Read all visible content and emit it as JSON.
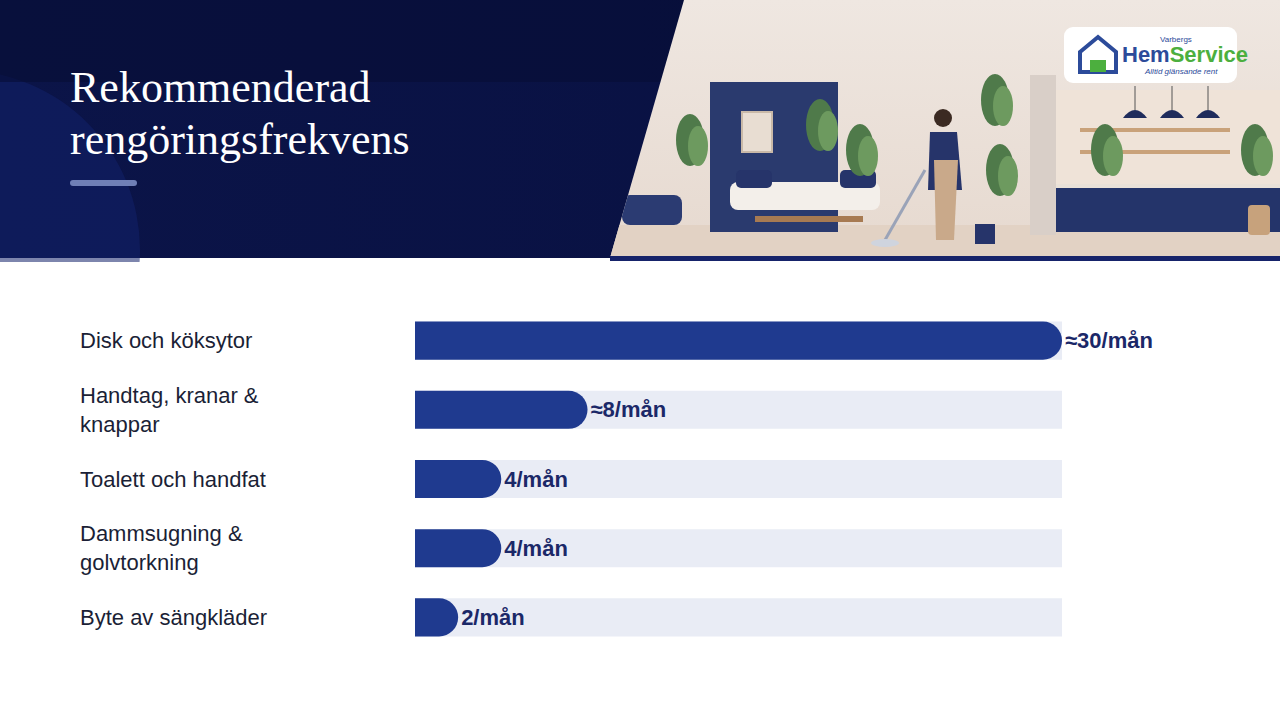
{
  "header": {
    "title": "Rekommenderad rengöringsfrekvens",
    "logo": {
      "top_text": "Varbergs",
      "name_parts": [
        "Hem",
        "Service"
      ],
      "tagline": "Alltid glänsande rent"
    }
  },
  "chart_data": {
    "type": "bar",
    "orientation": "horizontal",
    "categories": [
      "Disk och köksytor",
      "Handtag, kranar & knappar",
      "Toalett och handfat",
      "Dammsugning & golvtorkning",
      "Byte av sängkläder"
    ],
    "values": [
      30,
      8,
      4,
      4,
      2
    ],
    "value_labels": [
      "≈30/mån",
      "≈8/mån",
      "4/mån",
      "4/mån",
      "2/mån"
    ],
    "data_labels": true,
    "color": "#1f3a8f",
    "xlim": [
      0,
      30
    ],
    "grid": false,
    "tick_labels": "y"
  }
}
